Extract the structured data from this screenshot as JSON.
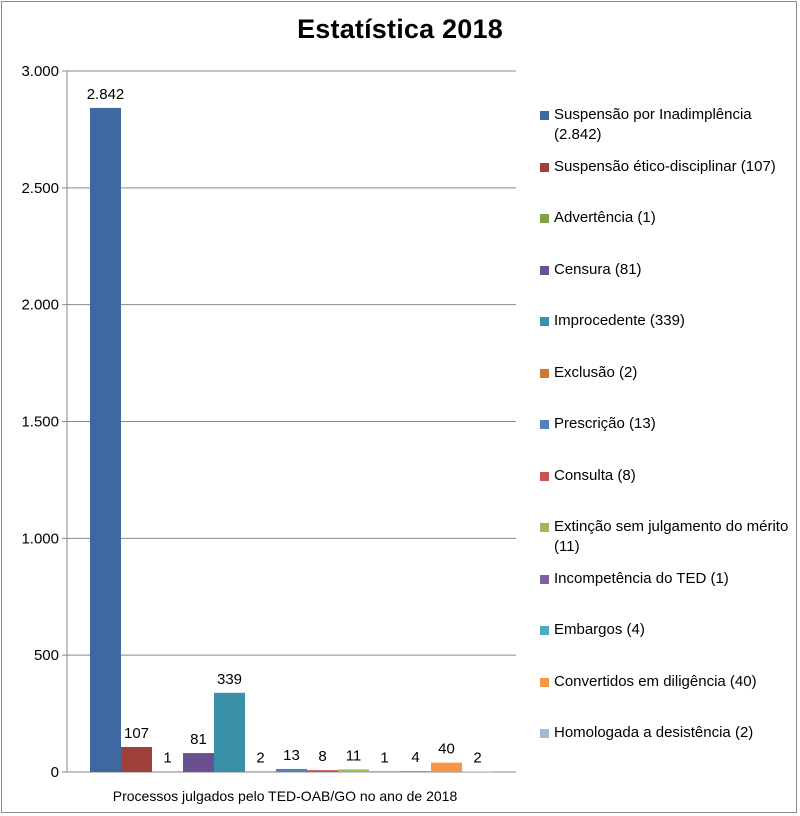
{
  "chart_data": {
    "type": "bar",
    "title": "Estatística 2018",
    "xlabel": "Processos julgados pelo TED-OAB/GO no ano de 2018",
    "ylabel": "",
    "ylim": [
      0,
      3000
    ],
    "yticks": [
      0,
      500,
      1000,
      1500,
      2000,
      2500,
      3000
    ],
    "ytick_labels": [
      "0",
      "500",
      "1.000",
      "1.500",
      "2.000",
      "2.500",
      "3.000"
    ],
    "grid": true,
    "legend_position": "right",
    "series": [
      {
        "name": "Suspensão por Inadimplência (2.842)",
        "value": 2842,
        "value_label": "2.842",
        "color": "#4068a0"
      },
      {
        "name": "Suspensão ético-disciplinar (107)",
        "value": 107,
        "value_label": "107",
        "color": "#a0403c"
      },
      {
        "name": "Advertência (1)",
        "value": 1,
        "value_label": "1",
        "color": "#82a045"
      },
      {
        "name": "Censura (81)",
        "value": 81,
        "value_label": "81",
        "color": "#6a5090"
      },
      {
        "name": "Improcedente (339)",
        "value": 339,
        "value_label": "339",
        "color": "#3a90a8"
      },
      {
        "name": "Exclusão (2)",
        "value": 2,
        "value_label": "2",
        "color": "#d2772e"
      },
      {
        "name": "Prescrição (13)",
        "value": 13,
        "value_label": "13",
        "color": "#4f80c0"
      },
      {
        "name": "Consulta (8)",
        "value": 8,
        "value_label": "8",
        "color": "#c85450"
      },
      {
        "name": "Extinção sem julgamento do mérito (11)",
        "value": 11,
        "value_label": "11",
        "color": "#9abb59"
      },
      {
        "name": "Incompetência do TED (1)",
        "value": 1,
        "value_label": "1",
        "color": "#7e62a0"
      },
      {
        "name": "Embargos (4)",
        "value": 4,
        "value_label": "4",
        "color": "#4aacc6"
      },
      {
        "name": "Convertidos em diligência (40)",
        "value": 40,
        "value_label": "40",
        "color": "#f79646"
      },
      {
        "name": "Homologada a desistência (2)",
        "value": 2,
        "value_label": "2",
        "color": "#a5b8d8"
      }
    ]
  }
}
